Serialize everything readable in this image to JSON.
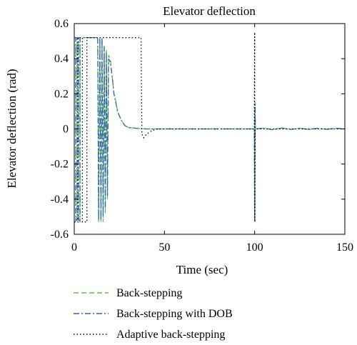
{
  "chart_data": {
    "type": "line",
    "title": "Elevator deflection",
    "xlabel": "Time (sec)",
    "ylabel": "Elevator deflection (rad)",
    "xlim": [
      0,
      150
    ],
    "ylim": [
      -0.6,
      0.6
    ],
    "xticks": [
      "0",
      "50",
      "100",
      "150"
    ],
    "yticks": [
      "0.6",
      "0.4",
      "0.2",
      "0",
      "-0.2",
      "-0.4",
      "-0.6"
    ],
    "grid": false,
    "legend_position": "below",
    "series": [
      {
        "name": "Back-stepping",
        "color": "#5cc43c",
        "dash": "dashed",
        "points": [
          [
            0,
            0.52
          ],
          [
            0.8,
            0.52
          ],
          [
            0.8,
            -0.53
          ],
          [
            1.6,
            -0.53
          ],
          [
            1.6,
            0.52
          ],
          [
            2.4,
            0.52
          ],
          [
            2.4,
            -0.53
          ],
          [
            3.2,
            -0.53
          ],
          [
            3.2,
            0.52
          ],
          [
            13,
            0.52
          ],
          [
            13.5,
            -0.53
          ],
          [
            14.2,
            0.52
          ],
          [
            14.8,
            -0.53
          ],
          [
            15.4,
            0.52
          ],
          [
            16,
            -0.53
          ],
          [
            16.6,
            0.48
          ],
          [
            17.2,
            -0.48
          ],
          [
            17.8,
            0.45
          ],
          [
            18.4,
            -0.4
          ],
          [
            19,
            0.42
          ],
          [
            20,
            0.4
          ],
          [
            21,
            0.3
          ],
          [
            22,
            0.2
          ],
          [
            23,
            0.16
          ],
          [
            24,
            0.1
          ],
          [
            26,
            0.05
          ],
          [
            28,
            0.02
          ],
          [
            30,
            0.008
          ],
          [
            35,
            0.003
          ],
          [
            40,
            0
          ],
          [
            60,
            0
          ],
          [
            99.8,
            0
          ],
          [
            100,
            -0.53
          ],
          [
            100.2,
            0.15
          ],
          [
            100.4,
            0
          ],
          [
            105,
            0.005
          ],
          [
            110,
            -0.004
          ],
          [
            115,
            0.006
          ],
          [
            120,
            -0.003
          ],
          [
            125,
            0.004
          ],
          [
            130,
            -0.003
          ],
          [
            135,
            0.004
          ],
          [
            140,
            -0.002
          ],
          [
            145,
            0.004
          ],
          [
            150,
            0
          ]
        ]
      },
      {
        "name": "Back-stepping with DOB",
        "color": "#3563b8",
        "dash": "dashdot",
        "points": [
          [
            0,
            0.52
          ],
          [
            0.8,
            0.52
          ],
          [
            0.8,
            -0.52
          ],
          [
            1.6,
            -0.52
          ],
          [
            1.6,
            0.52
          ],
          [
            2.4,
            0.52
          ],
          [
            2.4,
            -0.52
          ],
          [
            3.2,
            -0.52
          ],
          [
            3.2,
            0.52
          ],
          [
            13,
            0.52
          ],
          [
            13.5,
            -0.52
          ],
          [
            14.2,
            0.52
          ],
          [
            14.8,
            -0.52
          ],
          [
            15.4,
            0.52
          ],
          [
            16,
            -0.5
          ],
          [
            16.6,
            0.47
          ],
          [
            17.2,
            -0.46
          ],
          [
            17.8,
            0.44
          ],
          [
            18.4,
            -0.38
          ],
          [
            19,
            0.4
          ],
          [
            20,
            0.38
          ],
          [
            21,
            0.3
          ],
          [
            22,
            0.2
          ],
          [
            23,
            0.15
          ],
          [
            24,
            0.1
          ],
          [
            26,
            0.05
          ],
          [
            28,
            0.02
          ],
          [
            30,
            0.008
          ],
          [
            35,
            0.003
          ],
          [
            40,
            0
          ],
          [
            60,
            0
          ],
          [
            99.8,
            0
          ],
          [
            100,
            -0.52
          ],
          [
            100.2,
            0.14
          ],
          [
            100.4,
            0
          ],
          [
            105,
            0.004
          ],
          [
            110,
            -0.004
          ],
          [
            115,
            0.005
          ],
          [
            120,
            -0.003
          ],
          [
            125,
            0.004
          ],
          [
            130,
            -0.003
          ],
          [
            135,
            0.003
          ],
          [
            140,
            -0.002
          ],
          [
            145,
            0.003
          ],
          [
            150,
            0
          ]
        ]
      },
      {
        "name": "Adaptive back-stepping",
        "color": "#000000",
        "dash": "dotted",
        "points": [
          [
            0,
            -0.53
          ],
          [
            2,
            -0.53
          ],
          [
            2,
            0.52
          ],
          [
            4.5,
            0.52
          ],
          [
            4.5,
            -0.53
          ],
          [
            7,
            -0.53
          ],
          [
            7,
            0.52
          ],
          [
            37,
            0.52
          ],
          [
            37.5,
            -0.03
          ],
          [
            38.5,
            -0.05
          ],
          [
            40,
            -0.03
          ],
          [
            43,
            -0.01
          ],
          [
            46,
            0
          ],
          [
            60,
            0
          ],
          [
            99.8,
            0
          ],
          [
            100,
            0.55
          ],
          [
            100.1,
            -0.53
          ],
          [
            100.3,
            0
          ],
          [
            150,
            0
          ]
        ]
      }
    ]
  }
}
